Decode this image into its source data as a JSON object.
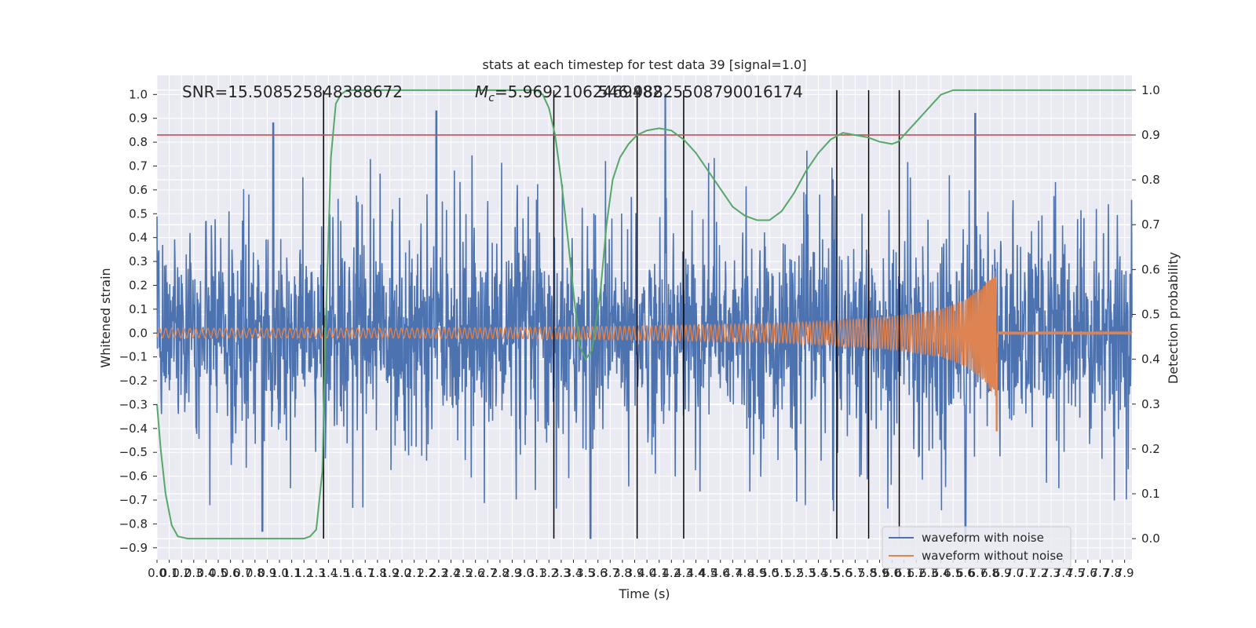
{
  "chart_data": {
    "type": "line",
    "title": "stats at each timestep for test data 39 [signal=1.0]",
    "xlabel": "Time (s)",
    "ylabel_left": "Whitened strain",
    "ylabel_right": "Detection probability",
    "xlim": [
      0,
      7.96
    ],
    "ylim_left": [
      -0.95,
      1.08
    ],
    "ylim_right": [
      -0.047,
      1.033
    ],
    "x_tick_values": [
      0.0,
      0.1,
      0.2,
      0.3,
      0.4,
      0.5,
      0.6,
      0.7,
      0.8,
      0.9,
      1.0,
      1.1,
      1.2,
      1.3,
      1.4,
      1.5,
      1.6,
      1.7,
      1.8,
      1.9,
      2.0,
      2.1,
      2.2,
      2.3,
      2.4,
      2.5,
      2.6,
      2.7,
      2.8,
      2.9,
      3.0,
      3.1,
      3.2,
      3.3,
      3.4,
      3.5,
      3.6,
      3.7,
      3.8,
      3.9,
      4.0,
      4.1,
      4.2,
      4.3,
      4.4,
      4.5,
      4.6,
      4.7,
      4.8,
      4.9,
      5.0,
      5.1,
      5.2,
      5.3,
      5.4,
      5.5,
      5.6,
      5.7,
      5.8,
      5.9,
      6.0,
      6.1,
      6.2,
      6.3,
      6.4,
      6.5,
      6.6,
      6.7,
      6.8,
      6.9,
      7.0,
      7.1,
      7.2,
      7.3,
      7.4,
      7.5,
      7.6,
      7.7,
      7.8,
      7.9
    ],
    "x_tick_labels": [
      "0.0",
      "0.1",
      "0.2",
      "0.3",
      "0.4",
      "0.5",
      "0.6",
      "0.7",
      "0.8",
      "0.9",
      "1.0",
      "1.1",
      "1.2",
      "1.3",
      "1.4",
      "1.5",
      "1.6",
      "1.7",
      "1.8",
      "1.9",
      "2.0",
      "2.1",
      "2.2",
      "2.3",
      "2.4",
      "2.5",
      "2.6",
      "2.7",
      "2.8",
      "2.9",
      "3.0",
      "3.1",
      "3.2",
      "3.3",
      "3.4",
      "3.5",
      "3.6",
      "3.7",
      "3.8",
      "3.9",
      "4.0",
      "4.1",
      "4.2",
      "4.3",
      "4.4",
      "4.5",
      "4.6",
      "4.7",
      "4.8",
      "4.9",
      "5.0",
      "5.1",
      "5.2",
      "5.3",
      "5.4",
      "5.5",
      "5.6",
      "5.7",
      "5.8",
      "5.9",
      "6.0",
      "6.1",
      "6.2",
      "6.3",
      "6.4",
      "6.5",
      "6.6",
      "6.7",
      "6.8",
      "6.9",
      "7.0",
      "7.1",
      "7.2",
      "7.3",
      "7.4",
      "7.5",
      "7.6",
      "7.7",
      "7.8",
      "7.9"
    ],
    "y_left_ticks": [
      -0.9,
      -0.8,
      -0.7,
      -0.6,
      -0.5,
      -0.4,
      -0.3,
      -0.2,
      -0.1,
      0.0,
      0.1,
      0.2,
      0.3,
      0.4,
      0.5,
      0.6,
      0.7,
      0.8,
      0.9,
      1.0
    ],
    "y_left_tick_labels": [
      "−0.9",
      "−0.8",
      "−0.7",
      "−0.6",
      "−0.5",
      "−0.4",
      "−0.3",
      "−0.2",
      "−0.1",
      "0.0",
      "0.1",
      "0.2",
      "0.3",
      "0.4",
      "0.5",
      "0.6",
      "0.7",
      "0.8",
      "0.9",
      "1.0"
    ],
    "y_right_ticks": [
      0.0,
      0.1,
      0.2,
      0.3,
      0.4,
      0.5,
      0.6,
      0.7,
      0.8,
      0.9,
      1.0
    ],
    "y_right_tick_labels": [
      "0.0",
      "0.1",
      "0.2",
      "0.3",
      "0.4",
      "0.5",
      "0.6",
      "0.7",
      "0.8",
      "0.9",
      "1.0"
    ],
    "annotations": {
      "snr": "SNR=15.508525848388672",
      "mc_symbol": "M",
      "mc_sub": "c",
      "mc_value": "=5.96921062469482",
      "mc_overlap": "546.98825508790016174"
    },
    "threshold_right": 0.9,
    "vertical_markers": [
      1.36,
      3.24,
      3.92,
      4.3,
      5.55,
      5.81,
      6.06
    ],
    "legend": {
      "position": "lower right",
      "entries": [
        "waveform with noise",
        "waveform without noise"
      ]
    },
    "series": [
      {
        "name": "waveform with noise",
        "axis": "left",
        "color": "#4c72b0",
        "style": "dense noise, amplitude mostly within ±0.55 with spikes up to 1.0 and down to -0.86",
        "notable_peaks": [
          [
            0.95,
            0.88
          ],
          [
            2.28,
            0.93
          ],
          [
            4.15,
            1.0
          ],
          [
            6.68,
            0.92
          ]
        ],
        "notable_troughs": [
          [
            0.86,
            -0.83
          ],
          [
            3.54,
            -0.86
          ],
          [
            6.6,
            -0.88
          ]
        ]
      },
      {
        "name": "waveform without noise",
        "axis": "left",
        "color": "#dd8452",
        "style": "chirp: oscillation with increasing frequency, amplitude grows from 0.02 to 0.28 at t=6.86 then drops to ~0",
        "envelope": [
          [
            0.0,
            0.02
          ],
          [
            1.0,
            0.02
          ],
          [
            2.0,
            0.021
          ],
          [
            3.0,
            0.024
          ],
          [
            4.0,
            0.03
          ],
          [
            5.0,
            0.04
          ],
          [
            5.5,
            0.05
          ],
          [
            6.0,
            0.07
          ],
          [
            6.4,
            0.1
          ],
          [
            6.6,
            0.14
          ],
          [
            6.75,
            0.2
          ],
          [
            6.86,
            0.28
          ]
        ],
        "end_time": 6.86
      },
      {
        "name": "detection probability",
        "axis": "right",
        "color": "#55a868",
        "x": [
          0.0,
          0.03,
          0.07,
          0.12,
          0.17,
          0.25,
          0.5,
          0.8,
          1.0,
          1.1,
          1.2,
          1.25,
          1.3,
          1.35,
          1.38,
          1.42,
          1.46,
          1.5,
          1.55,
          1.6,
          2.0,
          2.5,
          3.0,
          3.1,
          3.15,
          3.2,
          3.25,
          3.3,
          3.35,
          3.4,
          3.45,
          3.5,
          3.55,
          3.62,
          3.67,
          3.72,
          3.78,
          3.85,
          3.92,
          4.0,
          4.1,
          4.2,
          4.3,
          4.4,
          4.5,
          4.6,
          4.7,
          4.8,
          4.9,
          5.0,
          5.1,
          5.2,
          5.3,
          5.4,
          5.5,
          5.6,
          5.7,
          5.8,
          5.9,
          6.0,
          6.05,
          6.1,
          6.2,
          6.3,
          6.4,
          6.5,
          6.8,
          7.2,
          7.96
        ],
        "y": [
          0.3,
          0.2,
          0.1,
          0.03,
          0.005,
          0.0,
          0.0,
          0.0,
          0.0,
          0.0,
          0.0,
          0.005,
          0.02,
          0.15,
          0.5,
          0.85,
          0.97,
          0.99,
          1.0,
          1.0,
          1.0,
          1.0,
          1.0,
          1.0,
          0.99,
          0.96,
          0.9,
          0.8,
          0.68,
          0.55,
          0.43,
          0.4,
          0.42,
          0.55,
          0.7,
          0.8,
          0.85,
          0.88,
          0.9,
          0.91,
          0.915,
          0.91,
          0.89,
          0.86,
          0.82,
          0.78,
          0.74,
          0.72,
          0.71,
          0.71,
          0.73,
          0.77,
          0.82,
          0.86,
          0.89,
          0.905,
          0.9,
          0.895,
          0.885,
          0.88,
          0.885,
          0.9,
          0.93,
          0.96,
          0.99,
          1.0,
          1.0,
          1.0,
          1.0
        ]
      },
      {
        "name": "threshold",
        "axis": "right",
        "color": "#c44e52",
        "y": 0.9
      }
    ]
  }
}
